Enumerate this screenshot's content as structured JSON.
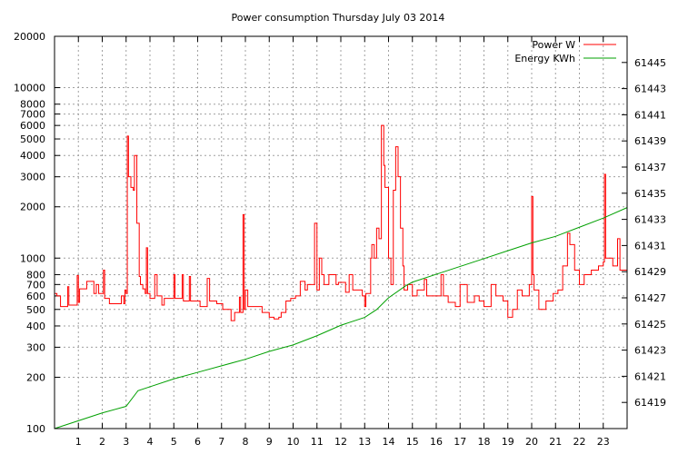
{
  "chart_data": {
    "type": "line",
    "title": "Power consumption Thursday July 03 2014",
    "xlabel": "",
    "ylabel": "",
    "xlim": [
      0,
      24
    ],
    "ylim": [
      100,
      20000
    ],
    "yscale": "log",
    "y2lim": [
      61417,
      61447
    ],
    "grid": true,
    "legend_position": "top-right",
    "x_ticks": [
      "1",
      "2",
      "3",
      "4",
      "5",
      "6",
      "7",
      "8",
      "9",
      "10",
      "11",
      "12",
      "13",
      "14",
      "15",
      "16",
      "17",
      "18",
      "19",
      "20",
      "21",
      "22",
      "23"
    ],
    "y_ticks": [
      "100",
      "200",
      "300",
      "400",
      "500",
      "600",
      "700",
      "800",
      "1000",
      "2000",
      "3000",
      "4000",
      "5000",
      "6000",
      "7000",
      "8000",
      "10000",
      "20000"
    ],
    "y2_ticks": [
      "61419",
      "61421",
      "61423",
      "61425",
      "61427",
      "61429",
      "61431",
      "61433",
      "61435",
      "61437",
      "61439",
      "61441",
      "61443",
      "61445"
    ],
    "series": [
      {
        "name": "Power W",
        "axis": "y",
        "color": "#ff0000",
        "style": "steps",
        "points": [
          [
            0,
            620
          ],
          [
            0.1,
            600
          ],
          [
            0.25,
            520
          ],
          [
            0.55,
            680
          ],
          [
            0.6,
            530
          ],
          [
            0.95,
            790
          ],
          [
            1.0,
            550
          ],
          [
            1.05,
            660
          ],
          [
            1.35,
            730
          ],
          [
            1.65,
            620
          ],
          [
            1.75,
            700
          ],
          [
            1.85,
            620
          ],
          [
            2.05,
            850
          ],
          [
            2.1,
            580
          ],
          [
            2.3,
            540
          ],
          [
            2.8,
            600
          ],
          [
            2.9,
            540
          ],
          [
            2.95,
            650
          ],
          [
            3.0,
            620
          ],
          [
            3.05,
            5200
          ],
          [
            3.1,
            3000
          ],
          [
            3.2,
            2600
          ],
          [
            3.3,
            2500
          ],
          [
            3.35,
            4000
          ],
          [
            3.45,
            1600
          ],
          [
            3.55,
            780
          ],
          [
            3.6,
            700
          ],
          [
            3.7,
            660
          ],
          [
            3.8,
            620
          ],
          [
            3.85,
            1150
          ],
          [
            3.9,
            620
          ],
          [
            4.0,
            580
          ],
          [
            4.2,
            800
          ],
          [
            4.3,
            600
          ],
          [
            4.5,
            530
          ],
          [
            4.6,
            580
          ],
          [
            5.0,
            800
          ],
          [
            5.05,
            580
          ],
          [
            5.35,
            800
          ],
          [
            5.4,
            560
          ],
          [
            5.65,
            780
          ],
          [
            5.7,
            560
          ],
          [
            6.0,
            560
          ],
          [
            6.1,
            520
          ],
          [
            6.4,
            760
          ],
          [
            6.5,
            560
          ],
          [
            6.8,
            540
          ],
          [
            7.05,
            500
          ],
          [
            7.4,
            430
          ],
          [
            7.55,
            480
          ],
          [
            7.75,
            590
          ],
          [
            7.8,
            480
          ],
          [
            7.9,
            1800
          ],
          [
            7.95,
            500
          ],
          [
            8.0,
            650
          ],
          [
            8.1,
            520
          ],
          [
            8.5,
            520
          ],
          [
            8.7,
            480
          ],
          [
            9.0,
            450
          ],
          [
            9.2,
            440
          ],
          [
            9.4,
            450
          ],
          [
            9.5,
            480
          ],
          [
            9.7,
            560
          ],
          [
            9.9,
            580
          ],
          [
            10.1,
            600
          ],
          [
            10.3,
            730
          ],
          [
            10.5,
            650
          ],
          [
            10.6,
            700
          ],
          [
            10.9,
            1600
          ],
          [
            11.0,
            650
          ],
          [
            11.1,
            1000
          ],
          [
            11.2,
            800
          ],
          [
            11.3,
            700
          ],
          [
            11.5,
            800
          ],
          [
            11.8,
            700
          ],
          [
            11.9,
            720
          ],
          [
            12.2,
            630
          ],
          [
            12.35,
            800
          ],
          [
            12.5,
            650
          ],
          [
            12.9,
            600
          ],
          [
            13.0,
            520
          ],
          [
            13.05,
            620
          ],
          [
            13.25,
            1000
          ],
          [
            13.3,
            1200
          ],
          [
            13.4,
            1000
          ],
          [
            13.5,
            1500
          ],
          [
            13.6,
            1300
          ],
          [
            13.7,
            6000
          ],
          [
            13.8,
            3500
          ],
          [
            13.85,
            2600
          ],
          [
            14.0,
            1000
          ],
          [
            14.1,
            700
          ],
          [
            14.2,
            2500
          ],
          [
            14.3,
            4500
          ],
          [
            14.4,
            3000
          ],
          [
            14.5,
            1500
          ],
          [
            14.6,
            900
          ],
          [
            14.65,
            650
          ],
          [
            14.8,
            700
          ],
          [
            15.0,
            600
          ],
          [
            15.2,
            650
          ],
          [
            15.5,
            750
          ],
          [
            15.6,
            600
          ],
          [
            16.0,
            600
          ],
          [
            16.2,
            800
          ],
          [
            16.3,
            600
          ],
          [
            16.5,
            550
          ],
          [
            16.8,
            520
          ],
          [
            17.0,
            700
          ],
          [
            17.3,
            550
          ],
          [
            17.6,
            600
          ],
          [
            17.8,
            560
          ],
          [
            18.0,
            520
          ],
          [
            18.3,
            700
          ],
          [
            18.5,
            600
          ],
          [
            18.8,
            560
          ],
          [
            19.0,
            450
          ],
          [
            19.2,
            500
          ],
          [
            19.4,
            650
          ],
          [
            19.6,
            600
          ],
          [
            19.9,
            700
          ],
          [
            20.0,
            2300
          ],
          [
            20.05,
            800
          ],
          [
            20.1,
            650
          ],
          [
            20.3,
            500
          ],
          [
            20.6,
            560
          ],
          [
            20.9,
            620
          ],
          [
            21.1,
            650
          ],
          [
            21.3,
            900
          ],
          [
            21.5,
            1400
          ],
          [
            21.6,
            1200
          ],
          [
            21.8,
            850
          ],
          [
            22.0,
            700
          ],
          [
            22.2,
            800
          ],
          [
            22.5,
            850
          ],
          [
            22.8,
            900
          ],
          [
            23.0,
            950
          ],
          [
            23.05,
            3100
          ],
          [
            23.1,
            1000
          ],
          [
            23.4,
            900
          ],
          [
            23.6,
            1300
          ],
          [
            23.7,
            850
          ],
          [
            24,
            850
          ]
        ]
      },
      {
        "name": "Energy KWh",
        "axis": "y2",
        "color": "#00a000",
        "style": "line",
        "points": [
          [
            0,
            61417.0
          ],
          [
            1,
            61417.6
          ],
          [
            2,
            61418.2
          ],
          [
            3,
            61418.7
          ],
          [
            3.5,
            61419.9
          ],
          [
            4,
            61420.2
          ],
          [
            5,
            61420.8
          ],
          [
            6,
            61421.3
          ],
          [
            7,
            61421.8
          ],
          [
            8,
            61422.3
          ],
          [
            9,
            61422.9
          ],
          [
            10,
            61423.4
          ],
          [
            11,
            61424.1
          ],
          [
            12,
            61424.9
          ],
          [
            13,
            61425.5
          ],
          [
            13.5,
            61426.1
          ],
          [
            14,
            61427.0
          ],
          [
            14.7,
            61427.9
          ],
          [
            15,
            61428.2
          ],
          [
            16,
            61428.8
          ],
          [
            17,
            61429.4
          ],
          [
            18,
            61430.0
          ],
          [
            19,
            61430.6
          ],
          [
            20,
            61431.2
          ],
          [
            21,
            61431.7
          ],
          [
            22,
            61432.4
          ],
          [
            23,
            61433.1
          ],
          [
            24,
            61433.9
          ]
        ]
      }
    ]
  }
}
